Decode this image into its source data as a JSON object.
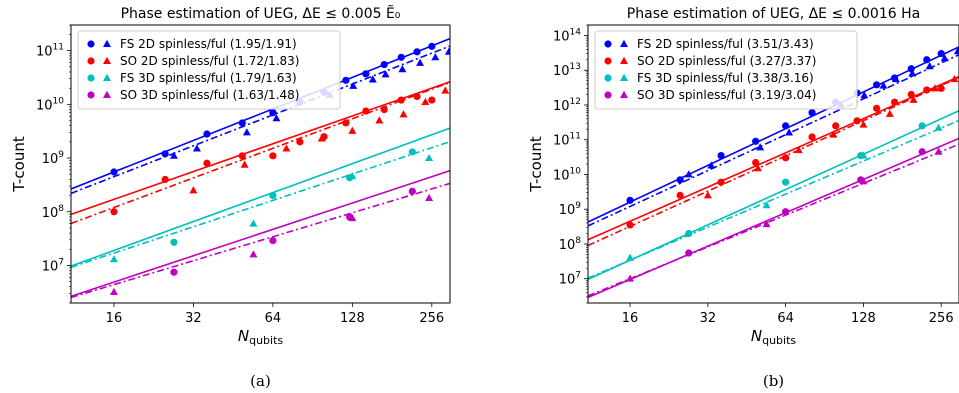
{
  "chart_data": [
    {
      "type": "scatter",
      "title": "Phase estimation of UEG, ΔE ≤ 0.005 Ẽ₀",
      "xlabel": "N_qubits",
      "ylabel": "T-count",
      "caption": "(a)",
      "xscale": "log2",
      "yscale": "log10",
      "xlim": [
        11,
        300
      ],
      "ylim": [
        2000000,
        300000000000
      ],
      "xticks": [
        16,
        32,
        64,
        128,
        256
      ],
      "yticks": [
        10000000,
        100000000,
        1000000000,
        10000000000,
        100000000000
      ],
      "ytick_exponents": [
        "7",
        "8",
        "9",
        "10",
        "11"
      ],
      "legend_position": "top-left",
      "grid": false,
      "series": [
        {
          "name": "FS 2D spinless/ful (1.95/1.91)",
          "color": "#0000ff",
          "spinless": {
            "x": [
              16,
              25,
              36,
              49,
              64,
              81,
              100,
              121,
              144,
              169,
              196,
              225,
              256
            ],
            "y": [
              550000000.0,
              1200000000.0,
              2800000000.0,
              4500000000.0,
              7000000000.0,
              11000000000.0,
              17000000000.0,
              28000000000.0,
              37000000000.0,
              55000000000.0,
              75000000000.0,
              95000000000.0,
              120000000000.0
            ]
          },
          "spinful": {
            "x": [
              27,
              33,
              51,
              66,
              105,
              129,
              153,
              171,
              198,
              231,
              264,
              297
            ],
            "y": [
              1100000000.0,
              1500000000.0,
              3000000000.0,
              5500000000.0,
              15000000000.0,
              22000000000.0,
              29000000000.0,
              36000000000.0,
              45000000000.0,
              59000000000.0,
              75000000000.0,
              95000000000.0
            ]
          },
          "fit_spinless": {
            "a": 550000000.0,
            "b": 1.95
          },
          "fit_spinful": {
            "a": 450000000.0,
            "b": 1.91
          }
        },
        {
          "name": "SO 2D spinless/ful (1.72/1.83)",
          "color": "#ff0000",
          "spinless": {
            "x": [
              16,
              25,
              36,
              49,
              64,
              81,
              100,
              121,
              144,
              169,
              196,
              225,
              256
            ],
            "y": [
              100000000.0,
              400000000.0,
              800000000.0,
              1100000000.0,
              1100000000.0,
              2000000000.0,
              2500000000.0,
              4500000000.0,
              7500000000.0,
              8000000000.0,
              12000000000.0,
              14000000000.0,
              12000000000.0
            ]
          },
          "spinful": {
            "x": [
              32,
              50,
              72,
              98,
              128,
              162,
              200,
              242,
              288
            ],
            "y": [
              250000000.0,
              750000000.0,
              1500000000.0,
              2300000000.0,
              3200000000.0,
              5000000000.0,
              6500000000.0,
              11000000000.0,
              18000000000.0
            ]
          },
          "fit_spinless": {
            "a": 170000000.0,
            "b": 1.72
          },
          "fit_spinful": {
            "a": 120000000.0,
            "b": 1.83
          }
        },
        {
          "name": "FS 3D spinless/ful (1.79/1.63)",
          "color": "#00bfbf",
          "spinless": {
            "x": [
              27,
              64,
              125,
              216
            ],
            "y": [
              27000000.0,
              200000000.0,
              430000000.0,
              1300000000.0
            ]
          },
          "spinful": {
            "x": [
              16,
              54,
              128,
              250
            ],
            "y": [
              13000000.0,
              60000000.0,
              460000000.0,
              1000000000.0
            ]
          },
          "fit_spinless": {
            "a": 19000000.0,
            "b": 1.79
          },
          "fit_spinful": {
            "a": 17000000.0,
            "b": 1.63
          }
        },
        {
          "name": "SO 3D spinless/ful (1.63/1.48)",
          "color": "#bf00bf",
          "spinless": {
            "x": [
              27,
              64,
              125,
              216
            ],
            "y": [
              7500000.0,
              29000000.0,
              80000000.0,
              240000000.0
            ]
          },
          "spinful": {
            "x": [
              16,
              54,
              128,
              250
            ],
            "y": [
              3200000.0,
              16000000.0,
              76000000.0,
              180000000.0
            ]
          },
          "fit_spinless": {
            "a": 4900000.0,
            "b": 1.63
          },
          "fit_spinful": {
            "a": 4400000.0,
            "b": 1.48
          }
        }
      ]
    },
    {
      "type": "scatter",
      "title": "Phase estimation of UEG, ΔE ≤ 0.0016 Ha",
      "xlabel": "N_qubits",
      "ylabel": "T-count",
      "caption": "(b)",
      "xscale": "log2",
      "yscale": "log10",
      "xlim": [
        11,
        300
      ],
      "ylim": [
        2000000,
        200000000000000
      ],
      "xticks": [
        16,
        32,
        64,
        128,
        256
      ],
      "yticks": [
        10000000,
        100000000,
        1000000000,
        10000000000,
        100000000000,
        1000000000000,
        10000000000000,
        100000000000000
      ],
      "ytick_exponents": [
        "7",
        "8",
        "9",
        "10",
        "11",
        "12",
        "13",
        "14"
      ],
      "legend_position": "top-left",
      "grid": false,
      "series": [
        {
          "name": "FS 2D spinless/ful (3.51/3.43)",
          "color": "#0000ff",
          "spinless": {
            "x": [
              16,
              25,
              36,
              49,
              64,
              81,
              100,
              121,
              144,
              169,
              196,
              225,
              256
            ],
            "y": [
              1800000000.0,
              7000000000.0,
              35000000000.0,
              90000000000.0,
              250000000000.0,
              600000000000.0,
              1200000000000.0,
              2200000000000.0,
              3800000000000.0,
              6000000000000.0,
              11000000000000.0,
              20000000000000.0,
              30000000000000.0
            ]
          },
          "spinful": {
            "x": [
              27,
              33,
              51,
              66,
              105,
              129,
              153,
              171,
              198,
              231,
              264,
              297
            ],
            "y": [
              10000000000.0,
              18000000000.0,
              60000000000.0,
              160000000000.0,
              1000000000000.0,
              1900000000000.0,
              3600000000000.0,
              5500000000000.0,
              8000000000000.0,
              13000000000000.0,
              22000000000000.0,
              35000000000000.0
            ]
          },
          "fit_spinless": {
            "a": 1600000000.0,
            "b": 3.51
          },
          "fit_spinful": {
            "a": 1200000000.0,
            "b": 3.43
          }
        },
        {
          "name": "SO 2D spinless/ful (3.27/3.37)",
          "color": "#ff0000",
          "spinless": {
            "x": [
              16,
              25,
              36,
              49,
              64,
              81,
              100,
              121,
              144,
              169,
              196,
              225,
              256
            ],
            "y": [
              350000000.0,
              2500000000.0,
              6000000000.0,
              22000000000.0,
              30000000000.0,
              120000000000.0,
              250000000000.0,
              350000000000.0,
              800000000000.0,
              1200000000000.0,
              2000000000000.0,
              2700000000000.0,
              3000000000000.0
            ]
          },
          "spinful": {
            "x": [
              32,
              50,
              72,
              98,
              128,
              162,
              200,
              242,
              288
            ],
            "y": [
              2500000000.0,
              15000000000.0,
              50000000000.0,
              140000000000.0,
              270000000000.0,
              550000000000.0,
              1400000000000.0,
              3000000000000.0,
              5500000000000.0
            ]
          },
          "fit_spinless": {
            "a": 450000000.0,
            "b": 3.27
          },
          "fit_spinful": {
            "a": 320000000.0,
            "b": 3.37
          }
        },
        {
          "name": "FS 3D spinless/ful (3.38/3.16)",
          "color": "#00bfbf",
          "spinless": {
            "x": [
              27,
              64,
              125,
              216
            ],
            "y": [
              200000000.0,
              6000000000.0,
              35000000000.0,
              250000000000.0
            ]
          },
          "spinful": {
            "x": [
              16,
              54,
              128,
              250
            ],
            "y": [
              40000000.0,
              1300000000.0,
              35000000000.0,
              220000000000.0
            ]
          },
          "fit_spinless": {
            "a": 34000000.0,
            "b": 3.38
          },
          "fit_spinful": {
            "a": 34000000.0,
            "b": 3.16
          }
        },
        {
          "name": "SO 3D spinless/ful (3.19/3.04)",
          "color": "#bf00bf",
          "spinless": {
            "x": [
              27,
              64,
              125,
              216
            ],
            "y": [
              55000000.0,
              850000000.0,
              7000000000.0,
              45000000000.0
            ]
          },
          "spinful": {
            "x": [
              16,
              54,
              128,
              250
            ],
            "y": [
              10000000.0,
              370000000.0,
              6300000000.0,
              45000000000.0
            ]
          },
          "fit_spinless": {
            "a": 9500000.0,
            "b": 3.19
          },
          "fit_spinful": {
            "a": 10000000.0,
            "b": 3.04
          }
        }
      ]
    }
  ]
}
